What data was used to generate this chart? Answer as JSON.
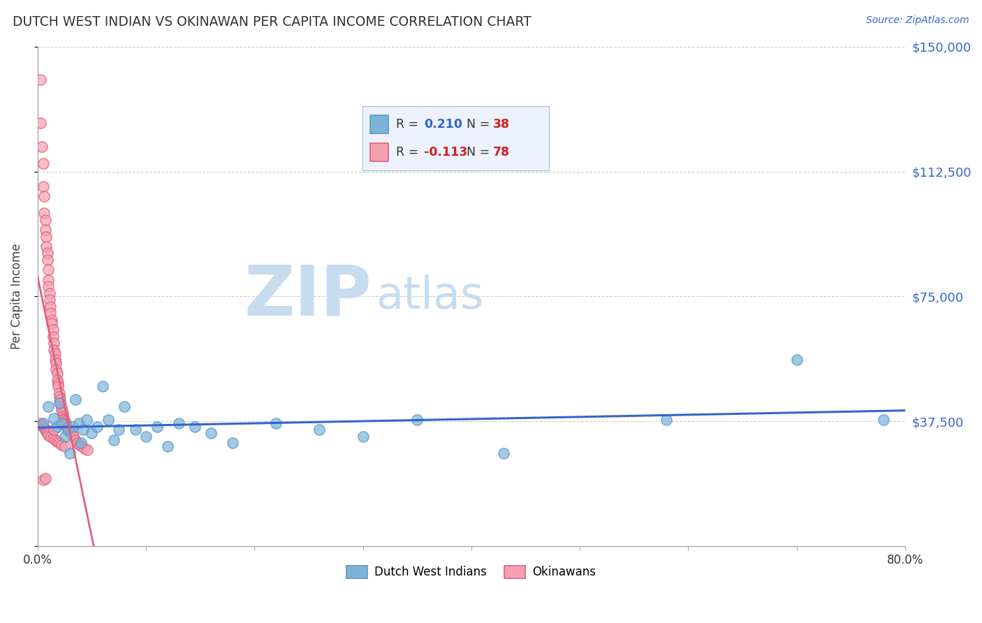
{
  "title": "DUTCH WEST INDIAN VS OKINAWAN PER CAPITA INCOME CORRELATION CHART",
  "source": "Source: ZipAtlas.com",
  "ylabel": "Per Capita Income",
  "xlim": [
    0,
    0.8
  ],
  "ylim": [
    0,
    150000
  ],
  "yticks": [
    0,
    37500,
    75000,
    112500,
    150000
  ],
  "ytick_labels": [
    "",
    "$37,500",
    "$75,000",
    "$112,500",
    "$150,000"
  ],
  "xticks": [
    0.0,
    0.1,
    0.2,
    0.3,
    0.4,
    0.5,
    0.6,
    0.7,
    0.8
  ],
  "xtick_labels": [
    "0.0%",
    "",
    "",
    "",
    "",
    "",
    "",
    "",
    "80.0%"
  ],
  "blue_color": "#7EB3D8",
  "blue_edge": "#5599CC",
  "pink_color": "#F5A0B0",
  "pink_edge": "#E06080",
  "blue_label": "Dutch West Indians",
  "pink_label": "Okinawans",
  "R_blue": 0.21,
  "N_blue": 38,
  "R_pink": -0.113,
  "N_pink": 78,
  "blue_scatter_x": [
    0.005,
    0.01,
    0.015,
    0.018,
    0.02,
    0.022,
    0.025,
    0.028,
    0.03,
    0.032,
    0.035,
    0.038,
    0.04,
    0.042,
    0.045,
    0.05,
    0.055,
    0.06,
    0.065,
    0.07,
    0.075,
    0.08,
    0.09,
    0.1,
    0.11,
    0.12,
    0.13,
    0.145,
    0.16,
    0.18,
    0.22,
    0.26,
    0.3,
    0.35,
    0.43,
    0.58,
    0.7,
    0.78
  ],
  "blue_scatter_y": [
    37000,
    42000,
    38500,
    36000,
    43000,
    37000,
    33000,
    35000,
    28000,
    36000,
    44000,
    37000,
    31000,
    35000,
    38000,
    34000,
    36000,
    48000,
    38000,
    32000,
    35000,
    42000,
    35000,
    33000,
    36000,
    30000,
    37000,
    36000,
    34000,
    31000,
    37000,
    35000,
    33000,
    38000,
    28000,
    38000,
    56000,
    38000
  ],
  "pink_scatter_x": [
    0.003,
    0.003,
    0.004,
    0.005,
    0.005,
    0.006,
    0.006,
    0.007,
    0.007,
    0.008,
    0.008,
    0.009,
    0.009,
    0.01,
    0.01,
    0.01,
    0.011,
    0.011,
    0.012,
    0.012,
    0.013,
    0.013,
    0.014,
    0.014,
    0.015,
    0.015,
    0.016,
    0.016,
    0.017,
    0.017,
    0.018,
    0.018,
    0.019,
    0.019,
    0.02,
    0.02,
    0.021,
    0.021,
    0.022,
    0.022,
    0.023,
    0.023,
    0.024,
    0.024,
    0.025,
    0.025,
    0.026,
    0.027,
    0.028,
    0.029,
    0.03,
    0.031,
    0.032,
    0.033,
    0.035,
    0.037,
    0.039,
    0.041,
    0.043,
    0.046,
    0.003,
    0.004,
    0.005,
    0.006,
    0.007,
    0.008,
    0.009,
    0.01,
    0.012,
    0.014,
    0.016,
    0.018,
    0.02,
    0.022,
    0.025,
    0.005,
    0.007,
    0.015
  ],
  "pink_scatter_y": [
    140000,
    127000,
    120000,
    115000,
    108000,
    105000,
    100000,
    98000,
    95000,
    93000,
    90000,
    88000,
    86000,
    83000,
    80000,
    78000,
    76000,
    74000,
    72000,
    70000,
    68000,
    67000,
    65000,
    63000,
    61000,
    59000,
    58000,
    56000,
    55000,
    53000,
    52000,
    50000,
    49000,
    48000,
    46000,
    45000,
    44000,
    43000,
    42000,
    41000,
    40000,
    39000,
    38500,
    38000,
    37500,
    37000,
    36500,
    36000,
    35500,
    35000,
    34500,
    34000,
    33500,
    33000,
    32000,
    31000,
    30500,
    30000,
    29500,
    29000,
    37000,
    36500,
    36000,
    35500,
    35000,
    34500,
    34000,
    33500,
    33000,
    32500,
    32000,
    31500,
    31000,
    30500,
    30000,
    20000,
    20500,
    35000
  ],
  "watermark_zip_color": "#C8DCF0",
  "watermark_atlas_color": "#C8DCF0"
}
